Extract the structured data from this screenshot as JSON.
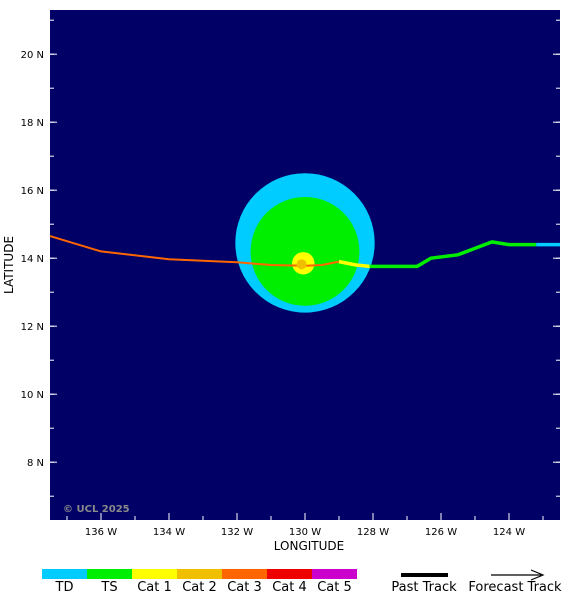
{
  "map": {
    "lon_range": [
      -137.5,
      -122.5
    ],
    "lat_range": [
      6.3,
      21.3
    ],
    "background_color": "#000066",
    "xlabel": "LONGITUDE",
    "ylabel": "LATITUDE",
    "copyright": "© UCL 2025",
    "lon_ticks": [
      {
        "value": -136,
        "label": "136 W"
      },
      {
        "value": -134,
        "label": "134 W"
      },
      {
        "value": -132,
        "label": "132 W"
      },
      {
        "value": -130,
        "label": "130 W"
      },
      {
        "value": -128,
        "label": "128 W"
      },
      {
        "value": -126,
        "label": "126 W"
      },
      {
        "value": -124,
        "label": "124 W"
      }
    ],
    "lat_ticks": [
      {
        "value": 20,
        "label": "20 N"
      },
      {
        "value": 18,
        "label": "18 N"
      },
      {
        "value": 16,
        "label": "16 N"
      },
      {
        "value": 14,
        "label": "14 N"
      },
      {
        "value": 12,
        "label": "12 N"
      },
      {
        "value": 10,
        "label": "10 N"
      },
      {
        "value": 8,
        "label": "8 N"
      }
    ]
  },
  "storm": {
    "center": {
      "lon": -130.1,
      "lat": 13.82
    },
    "wind_fields": [
      {
        "name": "TD",
        "color": "#00ccff",
        "center": {
          "lon": -130.0,
          "lat": 14.45
        },
        "radius_deg": 2.05
      },
      {
        "name": "TS",
        "color": "#00ee00",
        "center": {
          "lon": -130.0,
          "lat": 14.2
        },
        "radius_deg": 1.6
      },
      {
        "name": "Cat 1",
        "color": "#ffff00",
        "center": {
          "lon": -130.05,
          "lat": 13.85
        },
        "radius_deg": 0.33
      }
    ],
    "eye_color": "#f0c000",
    "tracks": [
      {
        "category": "Cat 3",
        "color": "#ff6600",
        "points": [
          [
            -137.5,
            14.65
          ],
          [
            -136.0,
            14.2
          ],
          [
            -134.0,
            13.97
          ],
          [
            -132.0,
            13.88
          ],
          [
            -131.0,
            13.8
          ],
          [
            -130.0,
            13.78
          ],
          [
            -129.5,
            13.8
          ],
          [
            -129.0,
            13.9
          ]
        ]
      },
      {
        "category": "Cat 1",
        "color": "#ffff00",
        "points": [
          [
            -129.0,
            13.9
          ],
          [
            -128.5,
            13.8
          ],
          [
            -128.1,
            13.76
          ]
        ]
      },
      {
        "category": "TS",
        "color": "#00ee00",
        "points": [
          [
            -128.1,
            13.76
          ],
          [
            -127.5,
            13.76
          ],
          [
            -126.7,
            13.76
          ],
          [
            -126.3,
            14.0
          ],
          [
            -125.5,
            14.1
          ],
          [
            -124.5,
            14.48
          ],
          [
            -124.0,
            14.4
          ],
          [
            -123.2,
            14.4
          ]
        ]
      },
      {
        "category": "TD",
        "color": "#00ccff",
        "points": [
          [
            -123.2,
            14.4
          ],
          [
            -122.5,
            14.4
          ]
        ]
      }
    ]
  },
  "legend": {
    "categories": [
      {
        "label": "TD",
        "color": "#00ccff"
      },
      {
        "label": "TS",
        "color": "#00ee00"
      },
      {
        "label": "Cat 1",
        "color": "#ffff00"
      },
      {
        "label": "Cat 2",
        "color": "#f0c000"
      },
      {
        "label": "Cat 3",
        "color": "#ff6600"
      },
      {
        "label": "Cat 4",
        "color": "#ee0000"
      },
      {
        "label": "Cat 5",
        "color": "#cc00cc"
      }
    ],
    "past_track_label": "Past Track",
    "forecast_track_label": "Forecast Track"
  }
}
